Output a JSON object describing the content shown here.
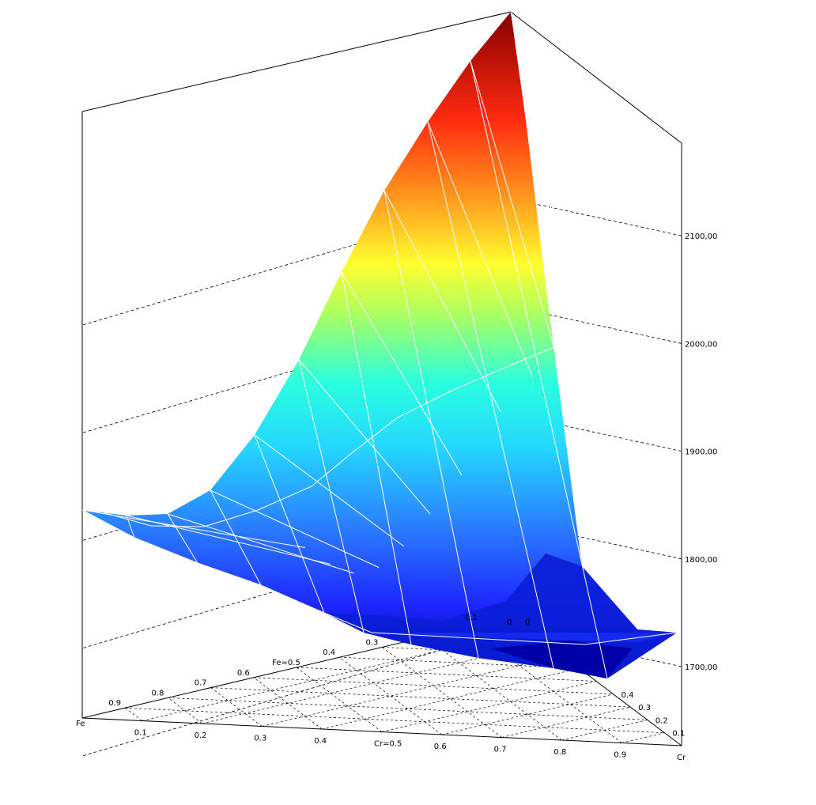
{
  "chart_data": {
    "type": "surface-3d-ternary",
    "title": "",
    "axes": {
      "fe_label": "Fe",
      "cr_label": "Cr",
      "z_label": ""
    },
    "z_ticks": [
      "1700,00",
      "1800,00",
      "1900,00",
      "2000,00",
      "2100,00"
    ],
    "z_tick_values": [
      1700,
      1800,
      1900,
      2000,
      2100
    ],
    "z_range": [
      1650,
      2250
    ],
    "cr_ticks": [
      "0.1",
      "0.2",
      "0.3",
      "0.4",
      "Cr=0.5",
      "0.6",
      "0.7",
      "0.8",
      "0.9"
    ],
    "fe_ticks": [
      "0.9",
      "0.8",
      "0.7",
      "0.6",
      "Fe=0.5",
      "0.4",
      "0.3"
    ],
    "right_edge_ticks": [
      "0.1",
      "0.2",
      "0.3",
      "0.4"
    ],
    "corner_ticks": [
      "0.1",
      "0",
      "0"
    ],
    "colormap": [
      "#00007f",
      "#0000ff",
      "#007fff",
      "#00ffff",
      "#7fff7f",
      "#ffff00",
      "#ff7f00",
      "#ff0000",
      "#7f0000"
    ],
    "surface_rows": [
      {
        "fe": 1.0,
        "values": [
          1840,
          1830,
          1815,
          1800,
          1785,
          1770,
          1755,
          1740,
          1725,
          1712,
          1700
        ]
      },
      {
        "fe": 0.9,
        "values": [
          1835,
          1810,
          1800,
          1790,
          1780,
          1765,
          1750,
          1735,
          1720,
          1705
        ]
      },
      {
        "fe": 0.8,
        "values": [
          1850,
          1815,
          1800,
          1790,
          1775,
          1760,
          1745,
          1730,
          1715
        ]
      },
      {
        "fe": 0.7,
        "values": [
          1890,
          1840,
          1810,
          1790,
          1775,
          1760,
          1745,
          1725
        ]
      },
      {
        "fe": 0.6,
        "values": [
          1950,
          1880,
          1840,
          1805,
          1780,
          1760,
          1740
        ]
      },
      {
        "fe": 0.5,
        "values": [
          2010,
          1930,
          1870,
          1820,
          1790,
          1765
        ]
      },
      {
        "fe": 0.4,
        "values": [
          2060,
          1980,
          1900,
          1840,
          1800
        ]
      },
      {
        "fe": 0.3,
        "values": [
          2110,
          2030,
          1940,
          1860
        ]
      },
      {
        "fe": 0.2,
        "values": [
          2160,
          2080,
          1970
        ]
      },
      {
        "fe": 0.1,
        "values": [
          2200,
          2110
        ]
      },
      {
        "fe": 0.0,
        "values": [
          2240
        ]
      }
    ]
  }
}
